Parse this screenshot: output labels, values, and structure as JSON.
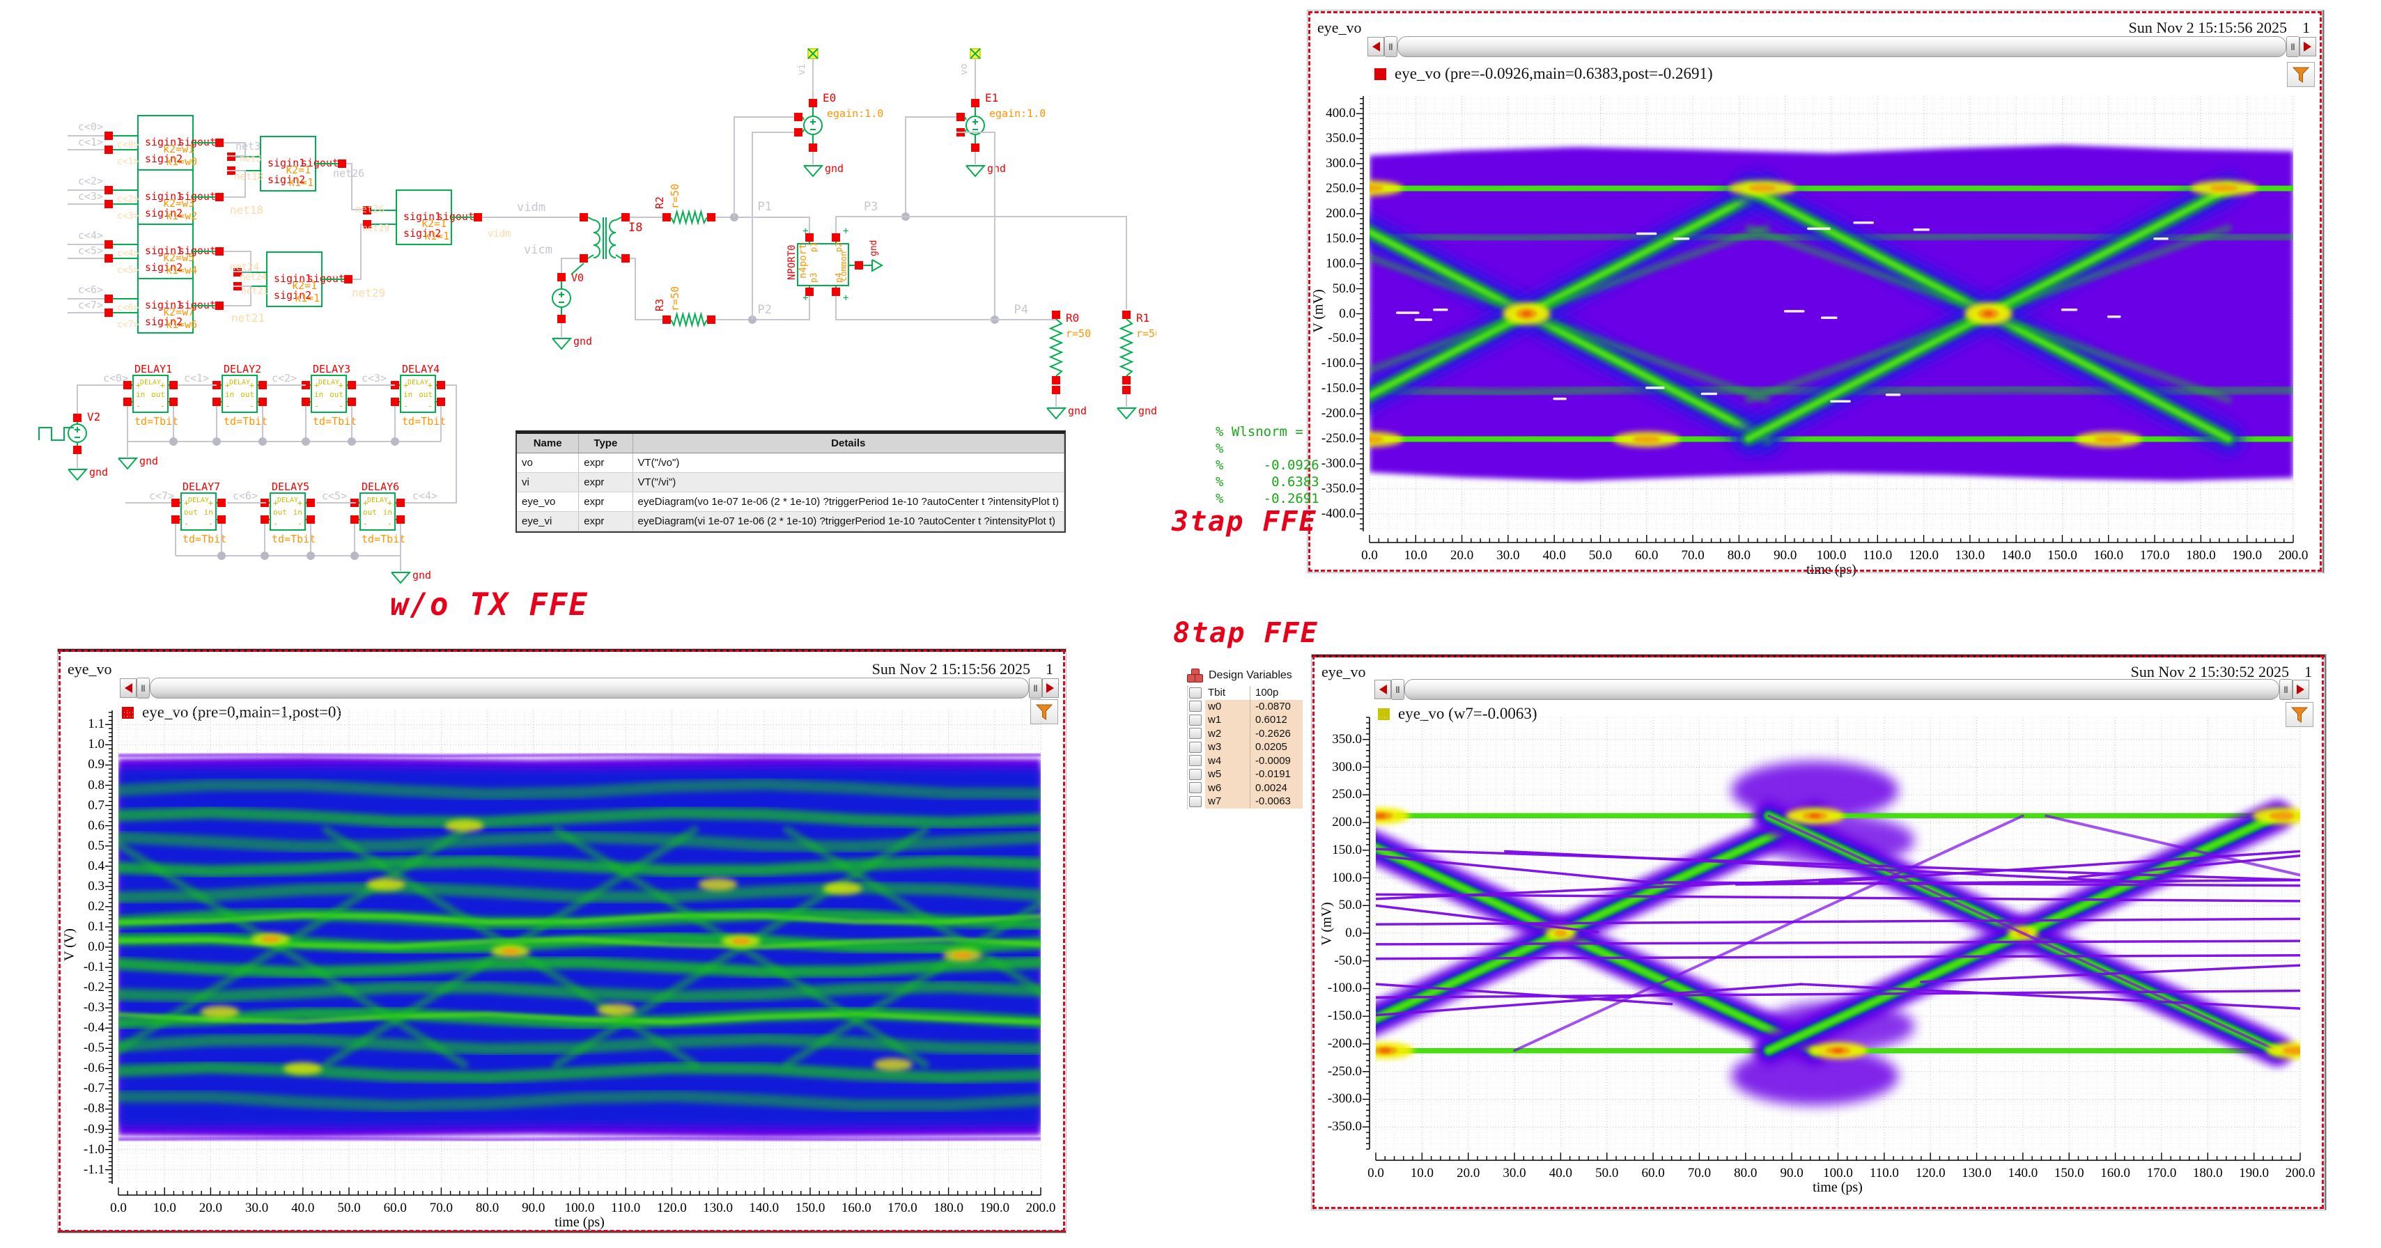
{
  "annotations": {
    "wo_tx_ffe": "w/o TX FFE",
    "ffe3": "3tap FFE",
    "ffe8": "8tap FFE",
    "wlsnorm_lines": [
      "% Wlsnorm =",
      "%",
      "%     -0.0926",
      "%      0.6383",
      "%     -0.2691"
    ]
  },
  "windows": {
    "tr": {
      "title": "eye_vo",
      "timestamp": "Sun Nov 2 15:15:56 2025",
      "page": "1",
      "legend": "eye_vo (pre=-0.0926,main=0.6383,post=-0.2691)",
      "swatch": "#e00000"
    },
    "bl": {
      "title": "eye_vo",
      "timestamp": "Sun Nov 2 15:15:56 2025",
      "page": "1",
      "legend": "eye_vo (pre=0,main=1,post=0)",
      "swatch": "#e00000"
    },
    "br": {
      "title": "eye_vo",
      "timestamp": "Sun Nov 2 15:30:52 2025",
      "page": "1",
      "legend": "eye_vo (w7=-0.0063)",
      "swatch": "#c9c400"
    }
  },
  "design_variables": {
    "title": "Design Variables",
    "rows": [
      [
        "Tbit",
        "100p"
      ],
      [
        "w0",
        "-0.0870"
      ],
      [
        "w1",
        "0.6012"
      ],
      [
        "w2",
        "-0.2626"
      ],
      [
        "w3",
        "0.0205"
      ],
      [
        "w4",
        "-0.0009"
      ],
      [
        "w5",
        "-0.0191"
      ],
      [
        "w6",
        "0.0024"
      ],
      [
        "w7",
        "-0.0063"
      ]
    ],
    "highlight_from": 1
  },
  "schematic": {
    "vocab": {
      "sigin1": "sigin1",
      "sigin2": "sigin2",
      "sigout": "sigout",
      "gnd": "gnd",
      "r50": "r=50",
      "td_tbit": "td=Tbit",
      "delay": "DELAY",
      "pin_in": "in",
      "pin_out": "out",
      "plus": "+",
      "minus": "-",
      "egain": "egain:1.0",
      "k2_1": "k2=1",
      "k1_1": "k1=1",
      "n4port": "n4port",
      "common": "common",
      "vidm": "vidm",
      "vicm": "vicm",
      "vi": "vi",
      "vo": "vo"
    },
    "stage1_params": [
      [
        "k2=w1",
        "k1=w0"
      ],
      [
        "k2=w3",
        "k1=w2"
      ],
      [
        "k2=w5",
        "k1=w4"
      ],
      [
        "k2=w7",
        "k1=w6"
      ]
    ],
    "nets": {
      "c": [
        "c<0>",
        "c<1>",
        "c<2>",
        "c<3>",
        "c<4>",
        "c<5>",
        "c<6>",
        "c<7>"
      ],
      "net3": "net3",
      "net18": "net18",
      "net21": "net21",
      "net24": "net24",
      "net26": "net26",
      "net29": "net29",
      "P1": "P1",
      "P2": "P2",
      "P3": "P3",
      "P4": "P4"
    },
    "instances": {
      "V2": "V2",
      "V0": "V0",
      "I8": "I8",
      "E0": "E0",
      "E1": "E1",
      "R0": "R0",
      "R1": "R1",
      "R2": "R2",
      "R3": "R3",
      "NPORT0": "NPORT0",
      "nport_pins": [
        "p1",
        "p2",
        "p3",
        "p4"
      ],
      "delays_top": [
        "DELAY1",
        "DELAY2",
        "DELAY3",
        "DELAY4"
      ],
      "delays_bottom": [
        "DELAY7",
        "DELAY5",
        "DELAY6"
      ]
    },
    "table": {
      "headers": [
        "Name",
        "Type",
        "Details"
      ],
      "rows": [
        [
          "vo",
          "expr",
          "VT(\"/vo\")"
        ],
        [
          "vi",
          "expr",
          "VT(\"/vi\")"
        ],
        [
          "eye_vo",
          "expr",
          "eyeDiagram(vo 1e-07 1e-06 (2 * 1e-10) ?triggerPeriod 1e-10 ?autoCenter t ?intensityPlot t)"
        ],
        [
          "eye_vi",
          "expr",
          "eyeDiagram(vi 1e-07 1e-06 (2 * 1e-10) ?triggerPeriod 1e-10 ?autoCenter t ?intensityPlot t)"
        ]
      ]
    }
  },
  "chart_data": [
    {
      "id": "eye_3tap",
      "type": "heatmap",
      "subtype": "eye_diagram_intensity",
      "window": "tr",
      "title": "eye_vo",
      "legend": "eye_vo (pre=-0.0926,main=0.6383,post=-0.2691)",
      "xlabel": "time (ps)",
      "ylabel": "V (mV)",
      "xlim": [
        0,
        200
      ],
      "xtick": 10,
      "ylim": [
        -400,
        400
      ],
      "ytick": 50,
      "grid": "dotted",
      "legend_position": "top-left",
      "colormap": "intensity purple-blue-green-yellow-orange",
      "unit_interval_ps": 100,
      "ffe_taps": {
        "pre": -0.0926,
        "main": 0.6383,
        "post": -0.2691
      },
      "eye": {
        "rails_mV": [
          250,
          -250
        ],
        "crossings_ps": [
          34,
          134
        ],
        "crossing_level_mV": 0,
        "envelope_mV": [
          335,
          -335
        ],
        "diag_halfspan_ps": 52,
        "hot_top_ps": [
          0,
          85,
          185
        ],
        "hot_bottom_ps": [
          0,
          60,
          160
        ]
      }
    },
    {
      "id": "eye_noffe",
      "type": "heatmap",
      "subtype": "eye_diagram_intensity",
      "window": "bl",
      "title": "eye_vo",
      "legend": "eye_vo (pre=0,main=1,post=0)",
      "xlabel": "time (ps)",
      "ylabel": "V (V)",
      "xlim": [
        0,
        200
      ],
      "xtick": 10,
      "ylim": [
        -1.1,
        1.1
      ],
      "ytick": 0.1,
      "grid": "dotted",
      "legend_position": "top-left",
      "colormap": "intensity purple-blue-green-yellow-orange",
      "unit_interval_ps": 100,
      "ffe_taps": {
        "pre": 0,
        "main": 1,
        "post": 0
      },
      "eye": {
        "closed": true,
        "fill_V": [
          0.93,
          -0.93
        ],
        "crossings_ps": [
          35,
          85,
          135,
          185
        ]
      }
    },
    {
      "id": "eye_8tap",
      "type": "heatmap",
      "subtype": "eye_diagram_intensity",
      "window": "br",
      "title": "eye_vo",
      "legend": "eye_vo (w7=-0.0063)",
      "xlabel": "time (ps)",
      "ylabel": "V (mV)",
      "xlim": [
        0,
        200
      ],
      "xtick": 10,
      "ylim": [
        -350,
        350
      ],
      "ytick": 50,
      "grid": "dotted",
      "legend_position": "top-left",
      "colormap": "intensity purple-blue-green-yellow-orange",
      "unit_interval_ps": 100,
      "ffe_taps": {
        "w7": -0.0063
      },
      "eye": {
        "rails_mV": [
          212,
          -212
        ],
        "crossings_ps": [
          40,
          140
        ],
        "crossing_level_mV": 0,
        "envelope_mV": [
          300,
          -300
        ],
        "diag_halfspan_ps": 55,
        "hot_top_ps": [
          1,
          95,
          196
        ],
        "hot_bottom_ps": [
          2,
          100,
          199
        ]
      }
    }
  ]
}
